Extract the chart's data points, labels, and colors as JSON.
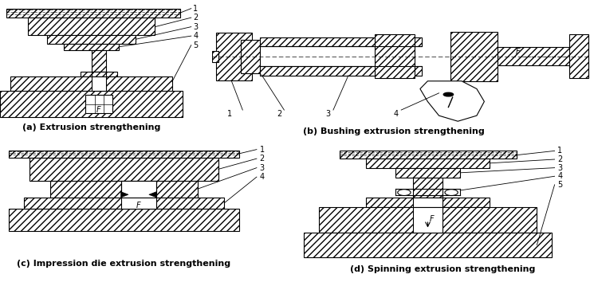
{
  "panels": [
    "(a) Extrusion strengthening",
    "(b) Bushing extrusion strengthening",
    "(c) Impression die extrusion strengthening",
    "(d) Spinning extrusion strengthening"
  ],
  "hatch": "////",
  "lw": 0.8,
  "label_fs": 7,
  "caption_fs": 8
}
